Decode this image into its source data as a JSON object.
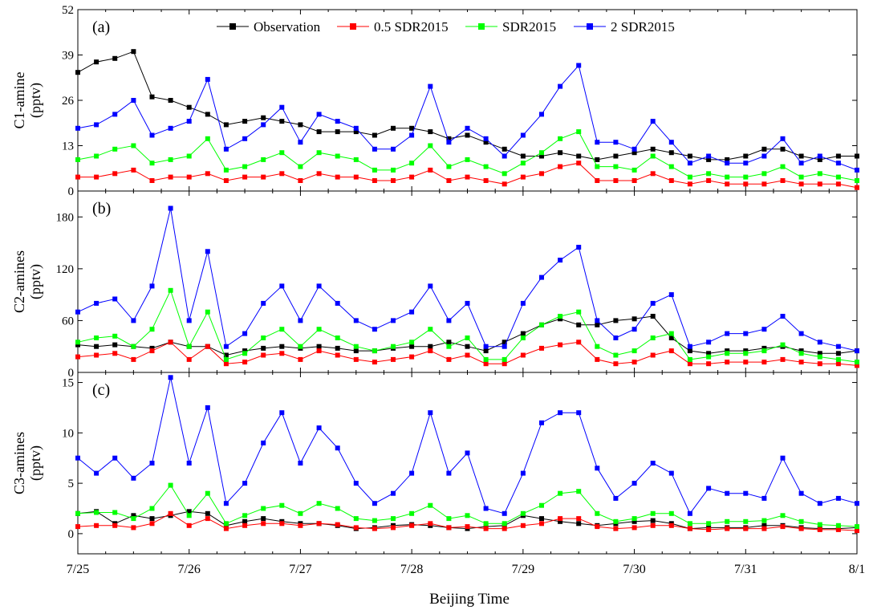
{
  "figure": {
    "xlabel": "Beijing Time",
    "x_ticks": [
      "7/25",
      "7/26",
      "7/27",
      "7/28",
      "7/29",
      "7/30",
      "7/31",
      "8/1"
    ],
    "x_range_days": [
      0,
      7
    ],
    "legend": {
      "placement": "top",
      "entries": [
        "Observation",
        "0.5 SDR2015",
        "SDR2015",
        "2 SDR2015"
      ]
    },
    "series_colors": {
      "Observation": "#000000",
      "0.5 SDR2015": "#ff0000",
      "SDR2015": "#00ff00",
      "2 SDR2015": "#0000ff"
    }
  },
  "chart_data": [
    {
      "type": "line",
      "panel_label": "(a)",
      "ylabel": "C1-amine\n(pptv)",
      "ylim": [
        0,
        52
      ],
      "y_ticks": [
        0,
        13,
        26,
        39,
        52
      ],
      "x": [
        0,
        0.1667,
        0.3333,
        0.5,
        0.6667,
        0.8333,
        1.0,
        1.1667,
        1.3333,
        1.5,
        1.6667,
        1.8333,
        2.0,
        2.1667,
        2.3333,
        2.5,
        2.6667,
        2.8333,
        3.0,
        3.1667,
        3.3333,
        3.5,
        3.6667,
        3.8333,
        4.0,
        4.1667,
        4.3333,
        4.5,
        4.6667,
        4.8333,
        5.0,
        5.1667,
        5.3333,
        5.5,
        5.6667,
        5.8333,
        6.0,
        6.1667,
        6.3333,
        6.5,
        6.6667,
        6.8333,
        7.0
      ],
      "series": [
        {
          "name": "Observation",
          "values": [
            34,
            37,
            38,
            40,
            27,
            26,
            24,
            22,
            19,
            20,
            21,
            20,
            19,
            17,
            17,
            17,
            16,
            18,
            18,
            17,
            15,
            16,
            14,
            12,
            10,
            10,
            11,
            10,
            9,
            10,
            11,
            12,
            11,
            10,
            9,
            9,
            10,
            12,
            12,
            10,
            9,
            10,
            10
          ]
        },
        {
          "name": "0.5 SDR2015",
          "values": [
            4,
            4,
            5,
            6,
            3,
            4,
            4,
            5,
            3,
            4,
            4,
            5,
            3,
            5,
            4,
            4,
            3,
            3,
            4,
            6,
            3,
            4,
            3,
            2,
            4,
            5,
            7,
            8,
            3,
            3,
            3,
            5,
            3,
            2,
            3,
            2,
            2,
            2,
            3,
            2,
            2,
            2,
            1
          ]
        },
        {
          "name": "SDR2015",
          "values": [
            9,
            10,
            12,
            13,
            8,
            9,
            10,
            15,
            6,
            7,
            9,
            11,
            7,
            11,
            10,
            9,
            6,
            6,
            8,
            13,
            7,
            9,
            7,
            5,
            8,
            11,
            15,
            17,
            7,
            7,
            6,
            10,
            7,
            4,
            5,
            4,
            4,
            5,
            7,
            4,
            5,
            4,
            3
          ]
        },
        {
          "name": "2 SDR2015",
          "values": [
            18,
            19,
            22,
            26,
            16,
            18,
            20,
            32,
            12,
            15,
            19,
            24,
            14,
            22,
            20,
            18,
            12,
            12,
            16,
            30,
            14,
            18,
            15,
            10,
            16,
            22,
            30,
            36,
            14,
            14,
            12,
            20,
            14,
            8,
            10,
            8,
            8,
            10,
            15,
            8,
            10,
            8,
            6
          ]
        }
      ]
    },
    {
      "type": "line",
      "panel_label": "(b)",
      "ylabel": "C2-amines\n(pptv)",
      "ylim": [
        0,
        210
      ],
      "y_ticks": [
        0,
        60,
        120,
        180
      ],
      "x": [
        0,
        0.1667,
        0.3333,
        0.5,
        0.6667,
        0.8333,
        1.0,
        1.1667,
        1.3333,
        1.5,
        1.6667,
        1.8333,
        2.0,
        2.1667,
        2.3333,
        2.5,
        2.6667,
        2.8333,
        3.0,
        3.1667,
        3.3333,
        3.5,
        3.6667,
        3.8333,
        4.0,
        4.1667,
        4.3333,
        4.5,
        4.6667,
        4.8333,
        5.0,
        5.1667,
        5.3333,
        5.5,
        5.6667,
        5.8333,
        6.0,
        6.1667,
        6.3333,
        6.5,
        6.6667,
        6.8333,
        7.0
      ],
      "series": [
        {
          "name": "Observation",
          "values": [
            32,
            30,
            32,
            30,
            28,
            35,
            30,
            30,
            20,
            25,
            28,
            30,
            28,
            30,
            28,
            25,
            25,
            28,
            30,
            30,
            35,
            30,
            25,
            35,
            45,
            55,
            62,
            55,
            55,
            60,
            62,
            65,
            40,
            25,
            22,
            25,
            25,
            28,
            30,
            25,
            22,
            22,
            25
          ]
        },
        {
          "name": "0.5 SDR2015",
          "values": [
            18,
            20,
            22,
            15,
            25,
            35,
            15,
            30,
            10,
            12,
            20,
            22,
            15,
            25,
            20,
            15,
            12,
            15,
            18,
            25,
            15,
            20,
            10,
            10,
            20,
            28,
            32,
            35,
            15,
            10,
            12,
            20,
            25,
            10,
            10,
            12,
            12,
            12,
            15,
            12,
            10,
            10,
            8
          ]
        },
        {
          "name": "SDR2015",
          "values": [
            35,
            40,
            42,
            30,
            50,
            95,
            30,
            70,
            15,
            22,
            40,
            50,
            30,
            50,
            40,
            30,
            25,
            30,
            35,
            50,
            30,
            40,
            15,
            15,
            40,
            55,
            65,
            70,
            30,
            20,
            25,
            40,
            45,
            15,
            18,
            22,
            22,
            25,
            32,
            22,
            18,
            15,
            12
          ]
        },
        {
          "name": "2 SDR2015",
          "values": [
            70,
            80,
            85,
            60,
            100,
            190,
            60,
            140,
            30,
            45,
            80,
            100,
            60,
            100,
            80,
            60,
            50,
            60,
            70,
            100,
            60,
            80,
            30,
            30,
            80,
            110,
            130,
            145,
            60,
            40,
            50,
            80,
            90,
            30,
            35,
            45,
            45,
            50,
            65,
            45,
            35,
            30,
            25
          ]
        }
      ]
    },
    {
      "type": "line",
      "panel_label": "(c)",
      "ylabel": "C3-amines\n(pptv)",
      "ylim": [
        -2,
        16
      ],
      "y_ticks": [
        0,
        5,
        10,
        15
      ],
      "x": [
        0,
        0.1667,
        0.3333,
        0.5,
        0.6667,
        0.8333,
        1.0,
        1.1667,
        1.3333,
        1.5,
        1.6667,
        1.8333,
        2.0,
        2.1667,
        2.3333,
        2.5,
        2.6667,
        2.8333,
        3.0,
        3.1667,
        3.3333,
        3.5,
        3.6667,
        3.8333,
        4.0,
        4.1667,
        4.3333,
        4.5,
        4.6667,
        4.8333,
        5.0,
        5.1667,
        5.3333,
        5.5,
        5.6667,
        5.8333,
        6.0,
        6.1667,
        6.3333,
        6.5,
        6.6667,
        6.8333,
        7.0
      ],
      "series": [
        {
          "name": "Observation",
          "values": [
            2.0,
            2.2,
            1.0,
            1.8,
            1.5,
            1.8,
            2.2,
            2.0,
            0.8,
            1.2,
            1.5,
            1.2,
            1.0,
            1.0,
            0.8,
            0.5,
            0.6,
            0.8,
            0.9,
            0.8,
            0.6,
            0.5,
            0.7,
            0.8,
            1.8,
            1.5,
            1.2,
            1.0,
            0.8,
            1.0,
            1.2,
            1.3,
            1.0,
            0.5,
            0.6,
            0.6,
            0.6,
            0.8,
            0.8,
            0.6,
            0.5,
            0.5,
            0.6
          ]
        },
        {
          "name": "0.5 SDR2015",
          "values": [
            0.7,
            0.8,
            0.8,
            0.6,
            1.0,
            2.0,
            0.8,
            1.5,
            0.5,
            0.8,
            1.0,
            1.0,
            0.8,
            1.0,
            0.9,
            0.6,
            0.5,
            0.6,
            0.8,
            1.0,
            0.6,
            0.7,
            0.5,
            0.5,
            0.8,
            1.0,
            1.5,
            1.5,
            0.7,
            0.5,
            0.6,
            0.8,
            0.8,
            0.5,
            0.4,
            0.5,
            0.5,
            0.5,
            0.7,
            0.5,
            0.4,
            0.4,
            0.3
          ]
        },
        {
          "name": "SDR2015",
          "values": [
            2.0,
            2.1,
            2.1,
            1.5,
            2.5,
            4.8,
            1.8,
            4.0,
            1.0,
            1.8,
            2.5,
            2.8,
            2.0,
            3.0,
            2.5,
            1.5,
            1.3,
            1.5,
            2.0,
            2.8,
            1.5,
            1.8,
            1.0,
            1.0,
            2.0,
            2.8,
            4.0,
            4.2,
            2.0,
            1.2,
            1.5,
            2.0,
            2.0,
            1.0,
            1.0,
            1.2,
            1.2,
            1.3,
            1.8,
            1.2,
            0.9,
            0.8,
            0.7
          ]
        },
        {
          "name": "2 SDR2015",
          "values": [
            7.5,
            6.0,
            7.5,
            5.5,
            7.0,
            15.5,
            7.0,
            12.5,
            3.0,
            5.0,
            9.0,
            12.0,
            7.0,
            10.5,
            8.5,
            5.0,
            3.0,
            4.0,
            6.0,
            12.0,
            6.0,
            8.0,
            2.5,
            2.0,
            6.0,
            11.0,
            12.0,
            12.0,
            6.5,
            3.5,
            5.0,
            7.0,
            6.0,
            2.0,
            4.5,
            4.0,
            4.0,
            3.5,
            7.5,
            4.0,
            3.0,
            3.5,
            3.0
          ]
        }
      ]
    }
  ]
}
